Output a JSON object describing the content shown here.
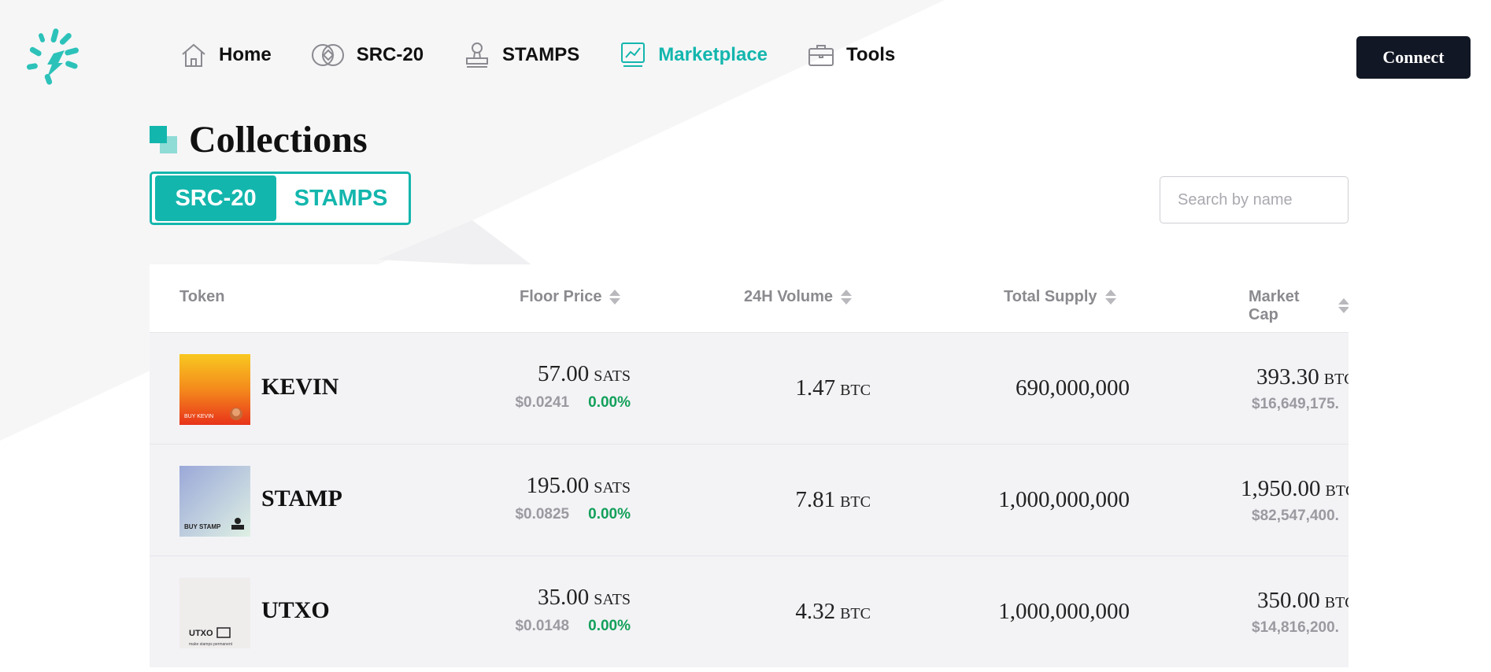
{
  "nav": {
    "items": [
      {
        "label": "Home",
        "icon": "home-icon"
      },
      {
        "label": "SRC-20",
        "icon": "coins-icon"
      },
      {
        "label": "STAMPS",
        "icon": "stamp-icon"
      },
      {
        "label": "Marketplace",
        "icon": "chart-icon",
        "active": true
      },
      {
        "label": "Tools",
        "icon": "briefcase-icon"
      }
    ],
    "connect_label": "Connect"
  },
  "page": {
    "title": "Collections",
    "tabs": [
      {
        "label": "SRC-20",
        "active": true
      },
      {
        "label": "STAMPS",
        "active": false
      }
    ],
    "search_placeholder": "Search by name"
  },
  "table": {
    "headers": [
      "Token",
      "Floor Price",
      "24H Volume",
      "Total Supply",
      "Market Cap"
    ],
    "rows": [
      {
        "name": "KEVIN",
        "floor": "57.00",
        "floor_unit": "SATS",
        "usd": "$0.0241",
        "change": "0.00%",
        "volume": "1.47",
        "volume_unit": "BTC",
        "supply": "690,000,000",
        "mcap": "393.30",
        "mcap_unit": "BTC",
        "mcap_usd": "$16,649,175.",
        "thumb_text": "BUY KEVIN"
      },
      {
        "name": "STAMP",
        "floor": "195.00",
        "floor_unit": "SATS",
        "usd": "$0.0825",
        "change": "0.00%",
        "volume": "7.81",
        "volume_unit": "BTC",
        "supply": "1,000,000,000",
        "mcap": "1,950.00",
        "mcap_unit": "BTC",
        "mcap_usd": "$82,547,400.",
        "thumb_text": "BUY STAMP"
      },
      {
        "name": "UTXO",
        "floor": "35.00",
        "floor_unit": "SATS",
        "usd": "$0.0148",
        "change": "0.00%",
        "volume": "4.32",
        "volume_unit": "BTC",
        "supply": "1,000,000,000",
        "mcap": "350.00",
        "mcap_unit": "BTC",
        "mcap_usd": "$14,816,200.",
        "thumb_text": "UTXO",
        "thumb_sub": "make stamps permanent"
      }
    ]
  },
  "colors": {
    "accent": "#13b6ad",
    "dark": "#121725",
    "positive": "#13a05a"
  }
}
